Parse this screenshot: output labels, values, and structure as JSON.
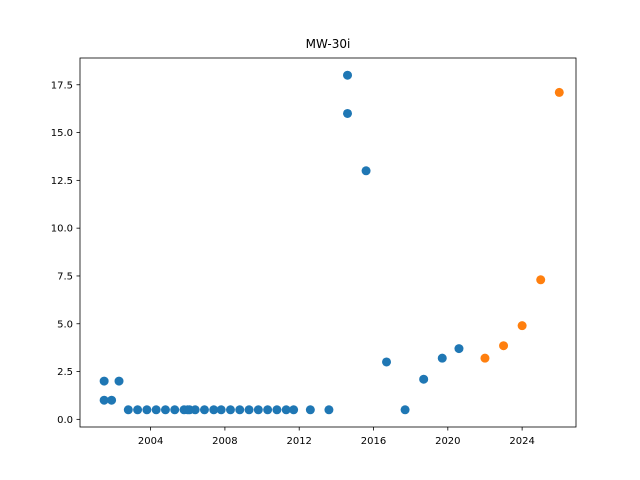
{
  "chart_data": {
    "type": "scatter",
    "title": "MW-30i",
    "xlabel": "",
    "ylabel": "",
    "xlim": [
      2000.2,
      2026.9
    ],
    "ylim": [
      -0.4,
      18.9
    ],
    "xticks": [
      2004,
      2008,
      2012,
      2016,
      2020,
      2024
    ],
    "yticks": [
      0.0,
      2.5,
      5.0,
      7.5,
      10.0,
      12.5,
      15.0,
      17.5
    ],
    "grid": false,
    "series": [
      {
        "color": "#1f77b4",
        "points": [
          [
            2001.5,
            1.0
          ],
          [
            2001.5,
            2.0
          ],
          [
            2001.9,
            1.0
          ],
          [
            2002.3,
            2.0
          ],
          [
            2002.8,
            0.5
          ],
          [
            2003.3,
            0.5
          ],
          [
            2003.8,
            0.5
          ],
          [
            2004.3,
            0.5
          ],
          [
            2004.8,
            0.5
          ],
          [
            2005.3,
            0.5
          ],
          [
            2005.8,
            0.5
          ],
          [
            2006.0,
            0.5
          ],
          [
            2006.1,
            0.5
          ],
          [
            2006.4,
            0.5
          ],
          [
            2006.9,
            0.5
          ],
          [
            2007.4,
            0.5
          ],
          [
            2007.8,
            0.5
          ],
          [
            2008.3,
            0.5
          ],
          [
            2008.8,
            0.5
          ],
          [
            2009.3,
            0.5
          ],
          [
            2009.8,
            0.5
          ],
          [
            2010.3,
            0.5
          ],
          [
            2010.8,
            0.5
          ],
          [
            2011.3,
            0.5
          ],
          [
            2011.7,
            0.5
          ],
          [
            2012.6,
            0.5
          ],
          [
            2013.6,
            0.5
          ],
          [
            2014.6,
            18.0
          ],
          [
            2014.6,
            16.0
          ],
          [
            2015.6,
            13.0
          ],
          [
            2016.7,
            3.0
          ],
          [
            2017.7,
            0.5
          ],
          [
            2018.7,
            2.1
          ],
          [
            2019.7,
            3.2
          ],
          [
            2020.6,
            3.7
          ]
        ]
      },
      {
        "color": "#ff7f0e",
        "points": [
          [
            2022.0,
            3.2
          ],
          [
            2023.0,
            3.85
          ],
          [
            2024.0,
            4.9
          ],
          [
            2025.0,
            7.3
          ],
          [
            2026.0,
            17.1
          ]
        ]
      }
    ]
  }
}
